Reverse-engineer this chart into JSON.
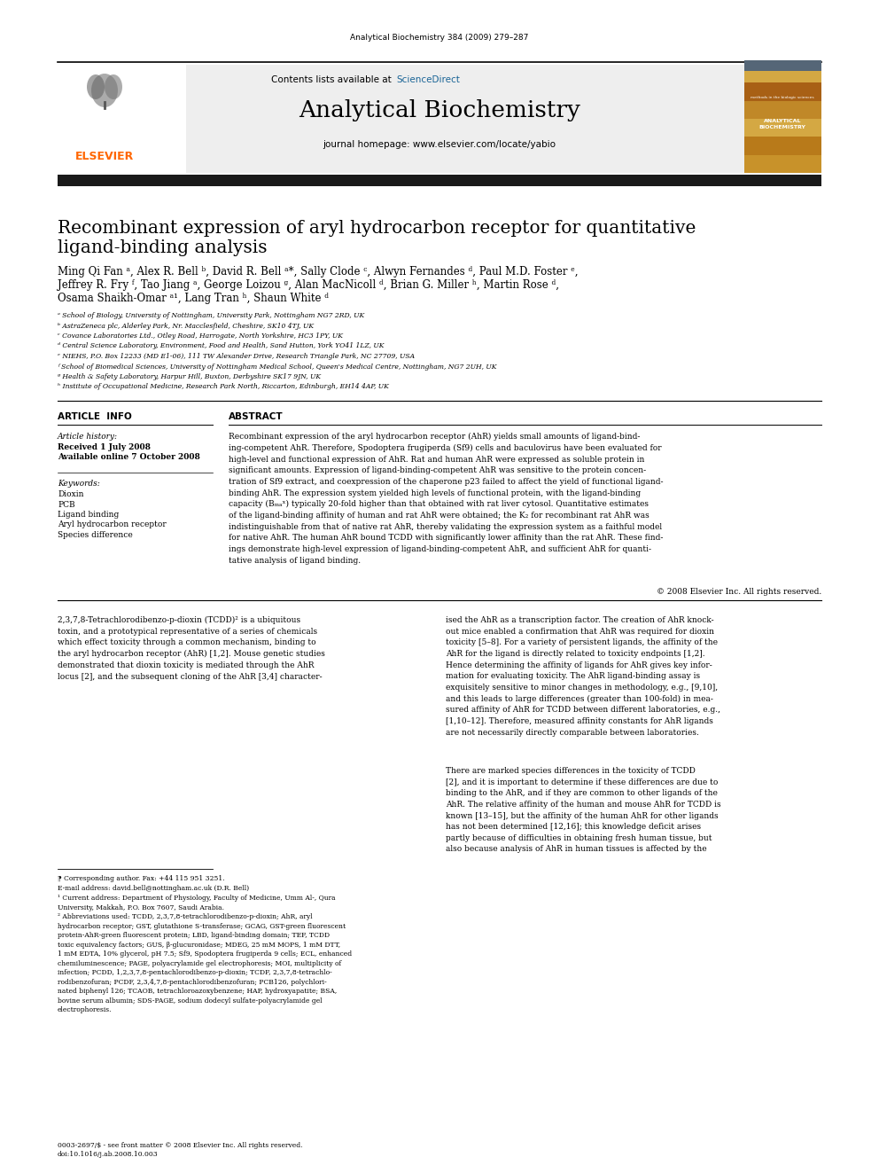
{
  "journal_info": "Analytical Biochemistry 384 (2009) 279–287",
  "journal_name": "Analytical Biochemistry",
  "contents_line": "Contents lists available at ScienceDirect",
  "homepage_line": "journal homepage: www.elsevier.com/locate/yabio",
  "paper_title_line1": "Recombinant expression of aryl hydrocarbon receptor for quantitative",
  "paper_title_line2": "ligand-binding analysis",
  "article_info_title": "ARTICLE  INFO",
  "article_history_label": "Article history:",
  "received": "Received 1 July 2008",
  "available": "Available online 7 October 2008",
  "keywords_label": "Keywords:",
  "keywords": [
    "Dioxin",
    "PCB",
    "Ligand binding",
    "Aryl hydrocarbon receptor",
    "Species difference"
  ],
  "abstract_title": "ABSTRACT",
  "copyright": "© 2008 Elsevier Inc. All rights reserved.",
  "elsevier_color": "#FF6600",
  "sciencedirect_color": "#1a6496",
  "dark_bar_color": "#1a1a1a",
  "body_fontsize": 6.5,
  "small_fontsize": 5.5
}
